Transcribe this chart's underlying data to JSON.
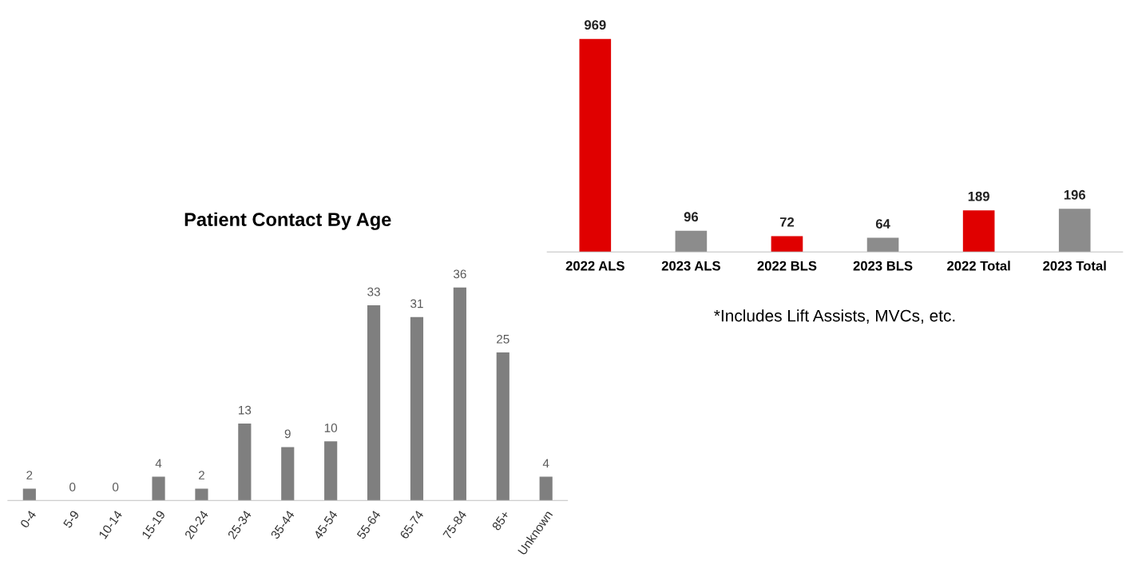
{
  "chart_data": [
    {
      "type": "bar",
      "categories": [
        "2022 ALS",
        "2023 ALS",
        "2022 BLS",
        "2023 BLS",
        "2022 Total",
        "2023 Total"
      ],
      "values": [
        969,
        96,
        72,
        64,
        189,
        196
      ],
      "colors": [
        "#e00000",
        "#8c8c8c",
        "#e00000",
        "#8c8c8c",
        "#e00000",
        "#8c8c8c"
      ],
      "data_labels": true,
      "annotations": [
        "*Includes Lift Assists, MVCs, etc."
      ]
    },
    {
      "type": "bar",
      "title": "Patient Contact By Age",
      "categories": [
        "0-4",
        "5-9",
        "10-14",
        "15-19",
        "20-24",
        "25-34",
        "35-44",
        "45-54",
        "55-64",
        "65-74",
        "75-84",
        "85+",
        "Unknown"
      ],
      "values": [
        2,
        0,
        0,
        4,
        2,
        13,
        9,
        10,
        33,
        31,
        36,
        25,
        4
      ],
      "color": "#7f7f7f",
      "data_labels": true
    }
  ]
}
